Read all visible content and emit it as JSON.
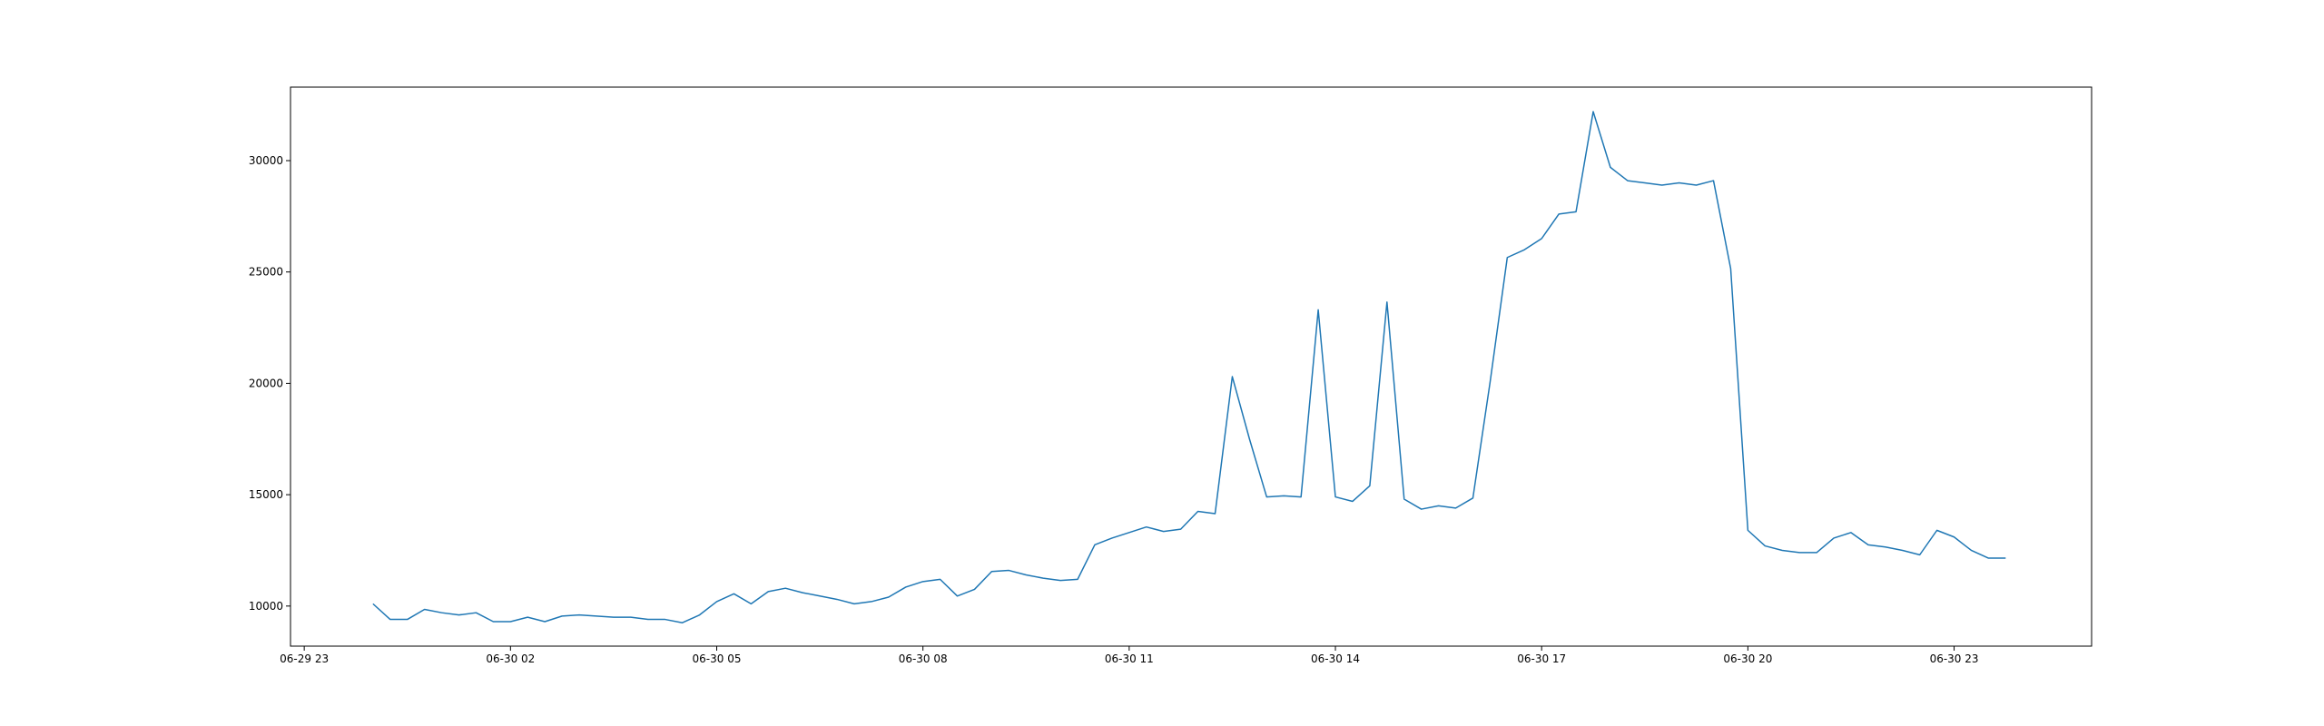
{
  "chart_data": {
    "type": "line",
    "title": "",
    "xlabel": "",
    "ylabel": "",
    "x_axis": {
      "type": "time",
      "min": "2024-06-29 22:48",
      "max": "2024-07-01 01:00",
      "ticks": [
        {
          "value": "2024-06-29 23:00",
          "label": "06-29 23"
        },
        {
          "value": "2024-06-30 02:00",
          "label": "06-30 02"
        },
        {
          "value": "2024-06-30 05:00",
          "label": "06-30 05"
        },
        {
          "value": "2024-06-30 08:00",
          "label": "06-30 08"
        },
        {
          "value": "2024-06-30 11:00",
          "label": "06-30 11"
        },
        {
          "value": "2024-06-30 14:00",
          "label": "06-30 14"
        },
        {
          "value": "2024-06-30 17:00",
          "label": "06-30 17"
        },
        {
          "value": "2024-06-30 20:00",
          "label": "06-30 20"
        },
        {
          "value": "2024-06-30 23:00",
          "label": "06-30 23"
        }
      ]
    },
    "y_axis": {
      "min": 8200,
      "max": 33300,
      "ticks": [
        {
          "value": 10000,
          "label": "10000"
        },
        {
          "value": 15000,
          "label": "15000"
        },
        {
          "value": 20000,
          "label": "20000"
        },
        {
          "value": 25000,
          "label": "25000"
        },
        {
          "value": 30000,
          "label": "30000"
        }
      ]
    },
    "grid": false,
    "legend": "none",
    "series": [
      {
        "color": "#1f77b4",
        "x": [
          "2024-06-30 00:00",
          "2024-06-30 00:15",
          "2024-06-30 00:30",
          "2024-06-30 00:45",
          "2024-06-30 01:00",
          "2024-06-30 01:15",
          "2024-06-30 01:30",
          "2024-06-30 01:45",
          "2024-06-30 02:00",
          "2024-06-30 02:15",
          "2024-06-30 02:30",
          "2024-06-30 02:45",
          "2024-06-30 03:00",
          "2024-06-30 03:15",
          "2024-06-30 03:30",
          "2024-06-30 03:45",
          "2024-06-30 04:00",
          "2024-06-30 04:15",
          "2024-06-30 04:30",
          "2024-06-30 04:45",
          "2024-06-30 05:00",
          "2024-06-30 05:15",
          "2024-06-30 05:30",
          "2024-06-30 05:45",
          "2024-06-30 06:00",
          "2024-06-30 06:15",
          "2024-06-30 06:30",
          "2024-06-30 06:45",
          "2024-06-30 07:00",
          "2024-06-30 07:15",
          "2024-06-30 07:30",
          "2024-06-30 07:45",
          "2024-06-30 08:00",
          "2024-06-30 08:15",
          "2024-06-30 08:30",
          "2024-06-30 08:45",
          "2024-06-30 09:00",
          "2024-06-30 09:15",
          "2024-06-30 09:30",
          "2024-06-30 09:45",
          "2024-06-30 10:00",
          "2024-06-30 10:15",
          "2024-06-30 10:30",
          "2024-06-30 10:45",
          "2024-06-30 11:00",
          "2024-06-30 11:15",
          "2024-06-30 11:30",
          "2024-06-30 11:45",
          "2024-06-30 12:00",
          "2024-06-30 12:15",
          "2024-06-30 12:30",
          "2024-06-30 12:45",
          "2024-06-30 13:00",
          "2024-06-30 13:15",
          "2024-06-30 13:30",
          "2024-06-30 13:45",
          "2024-06-30 14:00",
          "2024-06-30 14:15",
          "2024-06-30 14:30",
          "2024-06-30 14:45",
          "2024-06-30 15:00",
          "2024-06-30 15:15",
          "2024-06-30 15:30",
          "2024-06-30 15:45",
          "2024-06-30 16:00",
          "2024-06-30 16:15",
          "2024-06-30 16:30",
          "2024-06-30 16:45",
          "2024-06-30 17:00",
          "2024-06-30 17:15",
          "2024-06-30 17:30",
          "2024-06-30 17:45",
          "2024-06-30 18:00",
          "2024-06-30 18:15",
          "2024-06-30 18:30",
          "2024-06-30 18:45",
          "2024-06-30 19:00",
          "2024-06-30 19:15",
          "2024-06-30 19:30",
          "2024-06-30 19:45",
          "2024-06-30 20:00",
          "2024-06-30 20:15",
          "2024-06-30 20:30",
          "2024-06-30 20:45",
          "2024-06-30 21:00",
          "2024-06-30 21:15",
          "2024-06-30 21:30",
          "2024-06-30 21:45",
          "2024-06-30 22:00",
          "2024-06-30 22:15",
          "2024-06-30 22:30",
          "2024-06-30 22:45",
          "2024-06-30 23:00",
          "2024-06-30 23:15",
          "2024-06-30 23:30",
          "2024-06-30 23:45"
        ],
        "y": [
          10100,
          9400,
          9400,
          9850,
          9700,
          9600,
          9700,
          9300,
          9300,
          9500,
          9300,
          9550,
          9600,
          9550,
          9500,
          9500,
          9400,
          9400,
          9250,
          9600,
          10200,
          10550,
          10100,
          10650,
          10800,
          10600,
          10450,
          10300,
          10100,
          10200,
          10400,
          10850,
          11100,
          11200,
          10450,
          10750,
          11550,
          11600,
          11400,
          11250,
          11150,
          11200,
          12750,
          13050,
          13300,
          13550,
          13350,
          13450,
          14250,
          14150,
          20300,
          17500,
          14900,
          14950,
          14900,
          23300,
          14900,
          14700,
          15400,
          23650,
          14800,
          14350,
          14500,
          14400,
          14850,
          20050,
          25650,
          26000,
          26500,
          27600,
          27700,
          32200,
          29700,
          29100,
          29000,
          28900,
          29000,
          28900,
          29100,
          25150,
          13400,
          12700,
          12500,
          12400,
          12400,
          13050,
          13300,
          12750,
          12650,
          12500,
          12300,
          13400,
          13100,
          12500,
          12150,
          12150
        ]
      }
    ]
  }
}
